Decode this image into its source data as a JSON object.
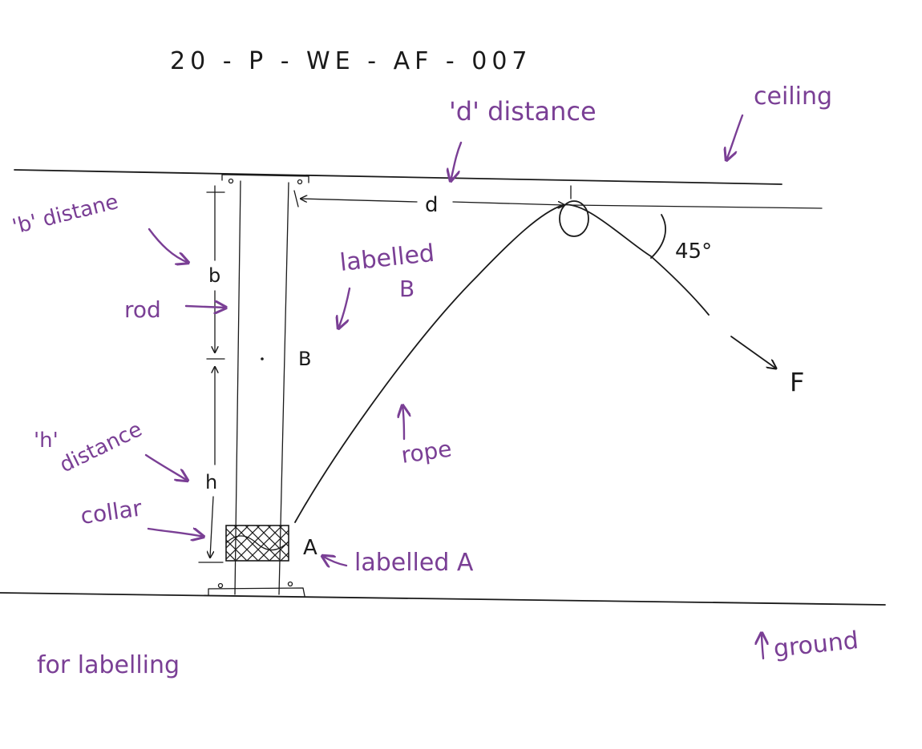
{
  "drawing_code": "20 - P - WE - AF - 007",
  "labels": {
    "d_distance": "'d' distance",
    "ceiling": "ceiling",
    "b_distance": "'b' distane",
    "labelled_b_line1": "labelled",
    "labelled_b_line2": "B",
    "rod": "rod",
    "h_distance_line1": "'h'",
    "h_distance_line2": "distance",
    "collar": "collar",
    "rope": "rope",
    "labelled_a": "labelled A",
    "for_labelling": "for labelling",
    "ground": "ground"
  },
  "dims": {
    "d": "d",
    "b": "b",
    "h": "h",
    "point_b": "B",
    "point_a": "A",
    "force": "F",
    "angle": "45°"
  },
  "colors": {
    "ink": "#1a1a1a",
    "annotation": "#7a3f95"
  }
}
